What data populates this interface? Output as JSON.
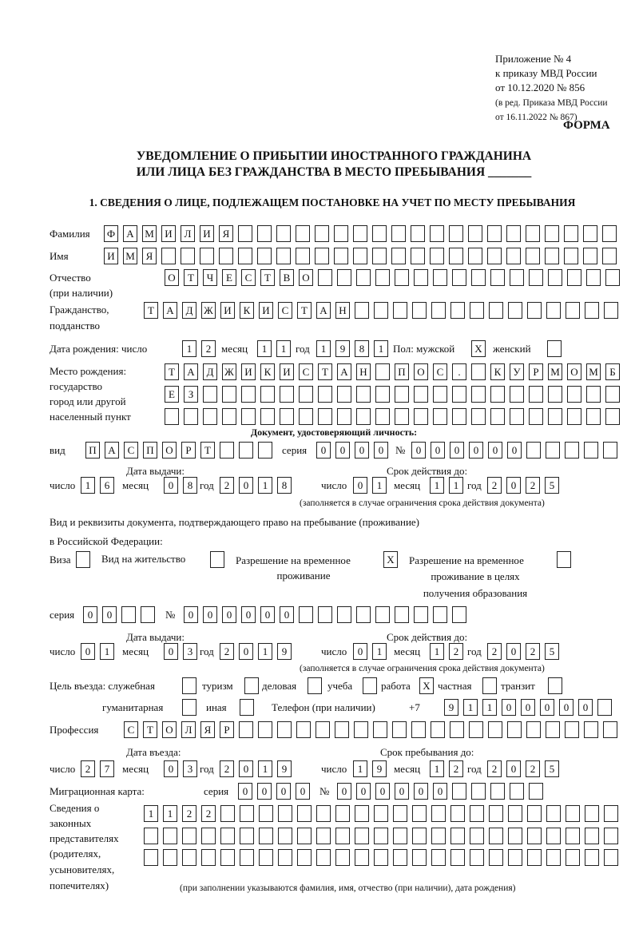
{
  "header": {
    "appendix": [
      "Приложение № 4",
      "к приказу МВД России",
      "от 10.12.2020 № 856"
    ],
    "revision": [
      "(в ред. Приказа МВД России",
      "от 16.11.2022 № 867)"
    ],
    "form_label": "ФОРМА",
    "title_line1": "УВЕДОМЛЕНИЕ О ПРИБЫТИИ ИНОСТРАННОГО ГРАЖДАНИНА",
    "title_line2": "ИЛИ ЛИЦА БЕЗ ГРАЖДАНСТВА В МЕСТО ПРЕБЫВАНИЯ _______",
    "section1": "1. СВЕДЕНИЯ О ЛИЦЕ, ПОДЛЕЖАЩЕМ ПОСТАНОВКЕ НА УЧЕТ ПО МЕСТУ ПРЕБЫВАНИЯ"
  },
  "labels": {
    "surname": "Фамилия",
    "name": "Имя",
    "patronymic1": "Отчество",
    "patronymic2": "(при наличии)",
    "citizenship1": "Гражданство,",
    "citizenship2": "подданство",
    "birth_date": "Дата рождения:  число",
    "month": "месяц",
    "year": "год",
    "day": "число",
    "sex_male": "Пол: мужской",
    "sex_female": "женский",
    "birthplace": [
      "Место рождения:",
      "государство",
      "город или другой",
      "населенный пункт"
    ],
    "id_doc_heading": "Документ, удостоверяющий личность:",
    "kind": "вид",
    "series": "серия",
    "number": "№",
    "issue_date": "Дата выдачи:",
    "valid_until": "Срок действия до:",
    "validity_note": "(заполняется в случае ограничения срока действия документа)",
    "stay_doc1": "Вид и реквизиты документа, подтверждающего право на пребывание (проживание)",
    "stay_doc2": "в Российской Федерации:",
    "visa": "Виза",
    "residence_permit": "Вид на жительство",
    "temp_residence1": "Разрешение на временное",
    "temp_residence2": "проживание",
    "temp_edu1": "Разрешение на временное",
    "temp_edu2": "проживание в целях",
    "temp_edu3": "получения образования",
    "purpose": "Цель въезда: служебная",
    "tourism": "туризм",
    "business": "деловая",
    "study": "учеба",
    "work": "работа",
    "private": "частная",
    "transit": "транзит",
    "humanitarian": "гуманитарная",
    "other": "иная",
    "phone": "Телефон (при наличии)",
    "phone_prefix": "+7",
    "profession": "Профессия",
    "entry_date": "Дата въезда:",
    "stay_until": "Срок пребывания до:",
    "migration_card": "Миграционная карта:",
    "guardians": [
      "Сведения о",
      "законных",
      "представителях",
      "(родителях,",
      "усыновителях,",
      "попечителях)"
    ],
    "guardians_note": "(при заполнении указываются фамилия, имя, отчество (при наличии), дата рождения)"
  },
  "fields": {
    "surname": "ФАМИЛИЯ",
    "name": "ИМЯ",
    "patronymic": "ОТЧЕСТВО",
    "citizenship": "ТАДЖИКИСТАН",
    "birth": {
      "day": "12",
      "month": "11",
      "year": "1981"
    },
    "sex": {
      "male": "X",
      "female": ""
    },
    "birthplace": [
      "ТАДЖИКИСТАН ПОС. КУРМОМБ",
      "ЕЗ",
      ""
    ],
    "id_doc": {
      "kind": "ПАСПОРТ",
      "series": "0000",
      "number": "000000",
      "issued": {
        "day": "16",
        "month": "08",
        "year": "2018"
      },
      "valid": {
        "day": "01",
        "month": "11",
        "year": "2025"
      }
    },
    "stay_doc_type": {
      "visa": "",
      "residence_permit": "",
      "temp_residence": "X",
      "temp_edu": ""
    },
    "stay_doc": {
      "series": "00",
      "number": "000000",
      "issued": {
        "day": "01",
        "month": "03",
        "year": "2019"
      },
      "valid": {
        "day": "01",
        "month": "12",
        "year": "2025"
      }
    },
    "purpose": {
      "official": "",
      "tourism": "",
      "business": "",
      "study": "",
      "work": "X",
      "private": "",
      "transit": "",
      "humanitarian": "",
      "other": ""
    },
    "phone": "91100000",
    "profession": "СТОЛЯР",
    "entry": {
      "day": "27",
      "month": "03",
      "year": "2019"
    },
    "stay_until": {
      "day": "19",
      "month": "12",
      "year": "2025"
    },
    "migration_card": {
      "series": "0000",
      "number": "000000"
    },
    "guardians": [
      "1122",
      "",
      ""
    ]
  }
}
